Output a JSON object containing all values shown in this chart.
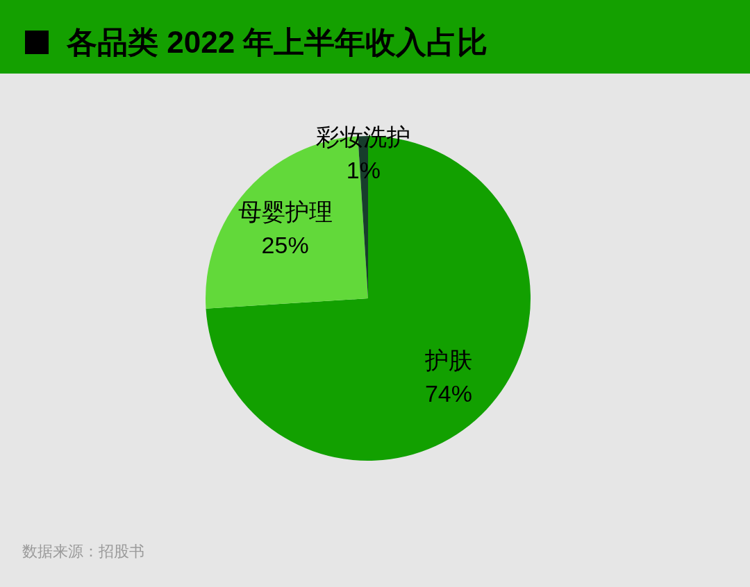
{
  "chart_data": {
    "type": "pie",
    "title": "各品类 2022 年上半年收入占比",
    "categories": [
      "护肤",
      "母婴护理",
      "彩妆洗护"
    ],
    "values": [
      74,
      25,
      1
    ],
    "colors": [
      "#12a000",
      "#62d93a",
      "#173d2c"
    ],
    "value_labels": [
      "74%",
      "25%",
      "1%"
    ],
    "annotations": [
      "数据来源：招股书"
    ]
  }
}
